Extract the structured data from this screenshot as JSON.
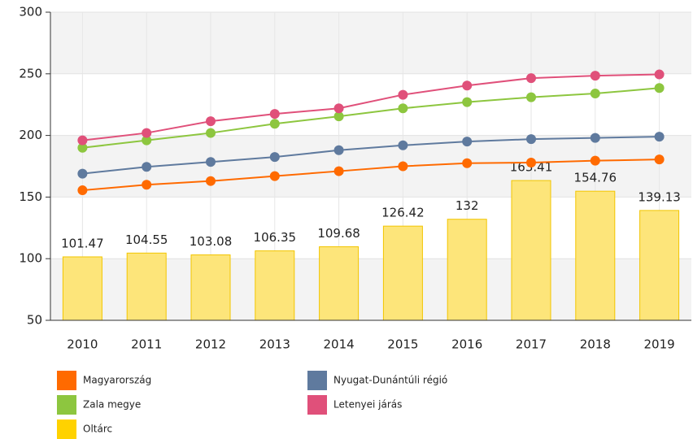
{
  "chart_data": {
    "type": "combo",
    "categories": [
      "2010",
      "2011",
      "2012",
      "2013",
      "2014",
      "2015",
      "2016",
      "2017",
      "2018",
      "2019"
    ],
    "series": [
      {
        "name": "Magyarország",
        "type": "line",
        "color": "#ff6a00",
        "values": [
          155.5,
          160,
          163,
          167,
          171,
          175,
          177.5,
          178,
          179.5,
          180.5
        ]
      },
      {
        "name": "Nyugat-Dunántúli régió",
        "type": "line",
        "color": "#5f7a9e",
        "values": [
          169,
          174.5,
          178.5,
          182.5,
          188,
          192,
          195,
          197,
          198,
          199
        ]
      },
      {
        "name": "Zala megye",
        "type": "line",
        "color": "#8dc63f",
        "values": [
          190,
          196,
          202,
          209.5,
          215.5,
          222,
          227,
          231,
          234,
          238.5
        ]
      },
      {
        "name": "Letenyei járás",
        "type": "line",
        "color": "#e0507a",
        "values": [
          196,
          202,
          211.5,
          217.5,
          222,
          233,
          240.5,
          246.5,
          248.5,
          249.5
        ]
      },
      {
        "name": "Oltárc",
        "type": "bar",
        "color": "#fde57a",
        "values": [
          101.47,
          104.55,
          103.08,
          106.35,
          109.68,
          126.42,
          132,
          163.41,
          154.76,
          139.13
        ]
      }
    ],
    "ylim": [
      50,
      300
    ],
    "yticks": [
      50,
      100,
      150,
      200,
      250,
      300
    ],
    "grid": true
  }
}
